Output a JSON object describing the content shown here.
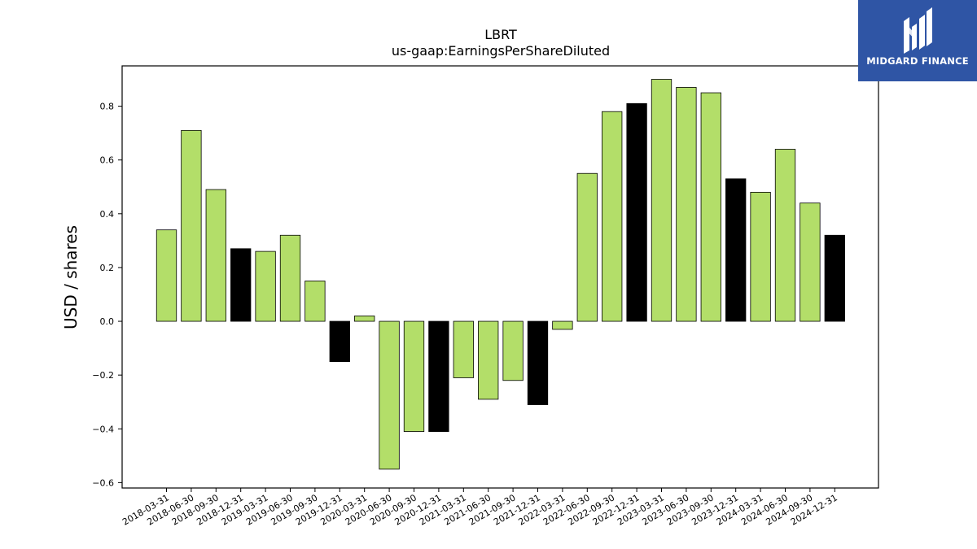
{
  "chart_data": {
    "type": "bar",
    "title": "LBRT",
    "subtitle": "us-gaap:EarningsPerShareDiluted",
    "ylabel": "USD / shares",
    "xlabel": "",
    "ylim": [
      -0.62,
      0.95
    ],
    "yticks": [
      -0.6,
      -0.4,
      -0.2,
      0.0,
      0.2,
      0.4,
      0.6,
      0.8
    ],
    "grid": false,
    "categories": [
      "2018-03-31",
      "2018-06-30",
      "2018-09-30",
      "2018-12-31",
      "2019-03-31",
      "2019-06-30",
      "2019-09-30",
      "2019-12-31",
      "2020-03-31",
      "2020-06-30",
      "2020-09-30",
      "2020-12-31",
      "2021-03-31",
      "2021-06-30",
      "2021-09-30",
      "2021-12-31",
      "2022-03-31",
      "2022-06-30",
      "2022-09-30",
      "2022-12-31",
      "2023-03-31",
      "2023-06-30",
      "2023-09-30",
      "2023-12-31",
      "2024-03-31",
      "2024-06-30",
      "2024-09-30",
      "2024-12-31"
    ],
    "values": [
      0.34,
      0.71,
      0.49,
      0.27,
      0.26,
      0.32,
      0.15,
      -0.15,
      0.02,
      -0.55,
      -0.41,
      -0.41,
      -0.21,
      -0.29,
      -0.22,
      -0.31,
      -0.03,
      0.55,
      0.78,
      0.81,
      0.9,
      0.87,
      0.85,
      0.53,
      0.48,
      0.64,
      0.44,
      0.32
    ],
    "quarter_colors": {
      "q1_q3": "#b3de69",
      "q4": "#000000"
    },
    "bar_colors": [
      "#b3de69",
      "#b3de69",
      "#b3de69",
      "#000000",
      "#b3de69",
      "#b3de69",
      "#b3de69",
      "#000000",
      "#b3de69",
      "#b3de69",
      "#b3de69",
      "#000000",
      "#b3de69",
      "#b3de69",
      "#b3de69",
      "#000000",
      "#b3de69",
      "#b3de69",
      "#b3de69",
      "#000000",
      "#b3de69",
      "#b3de69",
      "#b3de69",
      "#000000",
      "#b3de69",
      "#b3de69",
      "#b3de69",
      "#000000"
    ]
  },
  "logo": {
    "text": "MIDGARD FINANCE",
    "background": "#2f55a5"
  }
}
